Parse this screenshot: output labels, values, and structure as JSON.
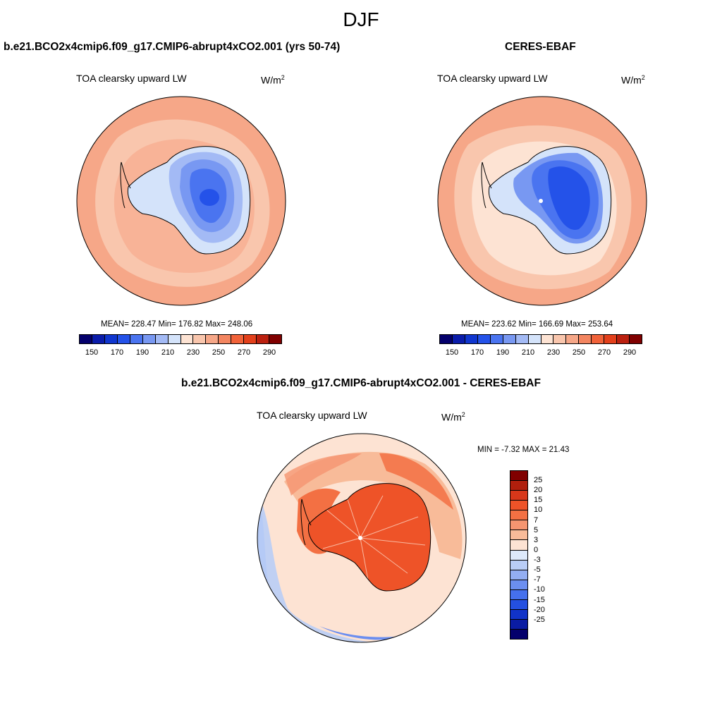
{
  "main_title": "DJF",
  "panel_left": {
    "case": "b.e21.BCO2x4cmip6.f09_g17.CMIP6-abrupt4xCO2.001 (yrs 50-74)",
    "variable": "TOA clearsky upward LW",
    "unit": "W/m",
    "unit_exp": "2",
    "stats": "MEAN= 228.47  Min= 176.82  Max= 248.06"
  },
  "panel_right": {
    "case": "CERES-EBAF",
    "variable": "TOA clearsky upward LW",
    "unit": "W/m",
    "unit_exp": "2",
    "stats": "MEAN= 223.62  Min= 166.69  Max= 253.64"
  },
  "panel_diff": {
    "case": "b.e21.BCO2x4cmip6.f09_g17.CMIP6-abrupt4xCO2.001 - CERES-EBAF",
    "variable": "TOA clearsky upward LW",
    "unit": "W/m",
    "unit_exp": "2",
    "stats": "MIN =  -7.32 MAX =  21.43"
  },
  "abs_colorbar": {
    "colors": [
      "#04006c",
      "#0a1caa",
      "#1036cf",
      "#2452e9",
      "#4a74f0",
      "#7898f2",
      "#a3baf5",
      "#d4e3fa",
      "#fde3d3",
      "#f9c6ad",
      "#f6a788",
      "#f38560",
      "#f16239",
      "#e3401b",
      "#bb200f",
      "#800000"
    ],
    "tick_labels": [
      "150",
      "170",
      "190",
      "210",
      "230",
      "250",
      "270",
      "290"
    ]
  },
  "diff_colorbar": {
    "colors": [
      "#800000",
      "#b01f0d",
      "#d8371a",
      "#ee5328",
      "#f37043",
      "#f59570",
      "#f8bb99",
      "#fde3d3",
      "#dde9fa",
      "#b9cdf6",
      "#93aef2",
      "#6b8ef0",
      "#4570ec",
      "#2450e1",
      "#1133c8",
      "#0a1ca3",
      "#04006c"
    ],
    "tick_labels": [
      "25",
      "20",
      "15",
      "10",
      "7",
      "5",
      "3",
      "0",
      "-3",
      "-5",
      "-7",
      "-10",
      "-15",
      "-20",
      "-25"
    ]
  },
  "map_colors": {
    "left_ocean": "#f6a788",
    "left_inner": "#f9c6ad",
    "right_ocean": "#f6a788",
    "right_inner": "#fde3d3",
    "diff_ocean": "#fde3d3",
    "diff_ring": "#f8bb99",
    "diff_antarctica": "#ee5328",
    "diff_negative": "#93aef2"
  }
}
